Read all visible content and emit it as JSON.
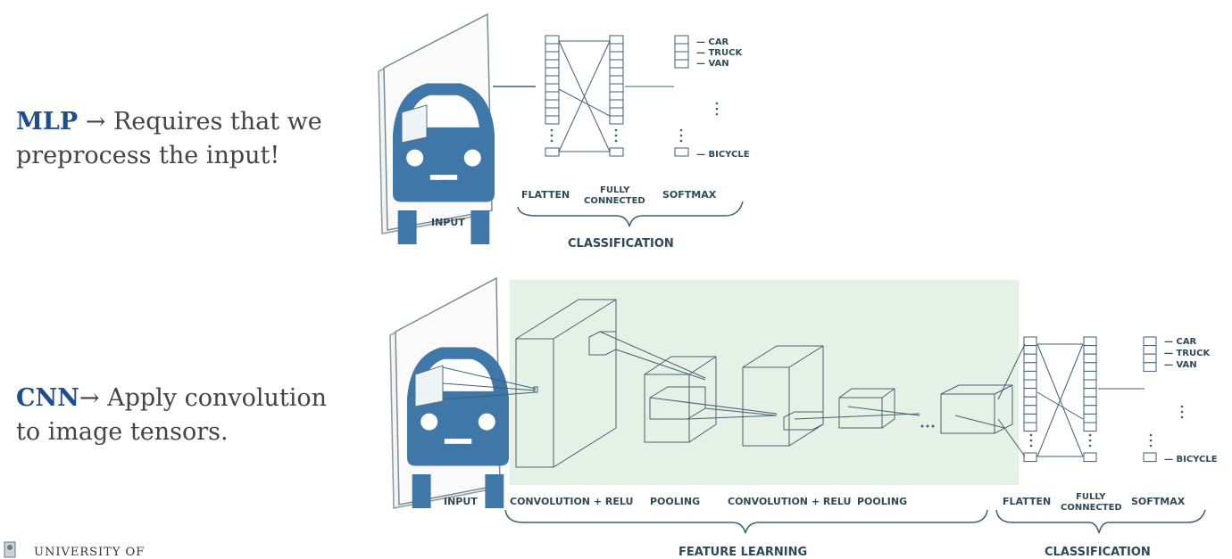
{
  "mlp": {
    "keyword": "MLP",
    "text": " → Requires that we",
    "text2": "preprocess the input!"
  },
  "cnn": {
    "keyword": "CNN",
    "text": "→ Apply convolution",
    "text2": "to image tensors."
  },
  "top": {
    "input": "INPUT",
    "classes": [
      "— CAR",
      "— TRUCK",
      "— VAN",
      "— BICYCLE"
    ],
    "flatten": "FLATTEN",
    "fully": "FULLY",
    "connected": "CONNECTED",
    "softmax": "SOFTMAX",
    "classification": "CLASSIFICATION"
  },
  "bottom": {
    "input": "INPUT",
    "conv1": "CONVOLUTION + RELU",
    "pool1": "POOLING",
    "conv2": "CONVOLUTION + RELU",
    "pool2": "POOLING",
    "flatten": "FLATTEN",
    "fully": "FULLY",
    "connected": "CONNECTED",
    "softmax": "SOFTMAX",
    "classes": [
      "— CAR",
      "— TRUCK",
      "— VAN",
      "— BICYCLE"
    ],
    "feature_learning": "FEATURE LEARNING",
    "classification": "CLASSIFICATION"
  },
  "footer": {
    "university": "UNIVERSITY OF"
  },
  "colors": {
    "car": "#3f77a8",
    "line": "#3e5f70",
    "feature_bg": "#e5f1e6",
    "keyword": "#1f4e8c"
  }
}
